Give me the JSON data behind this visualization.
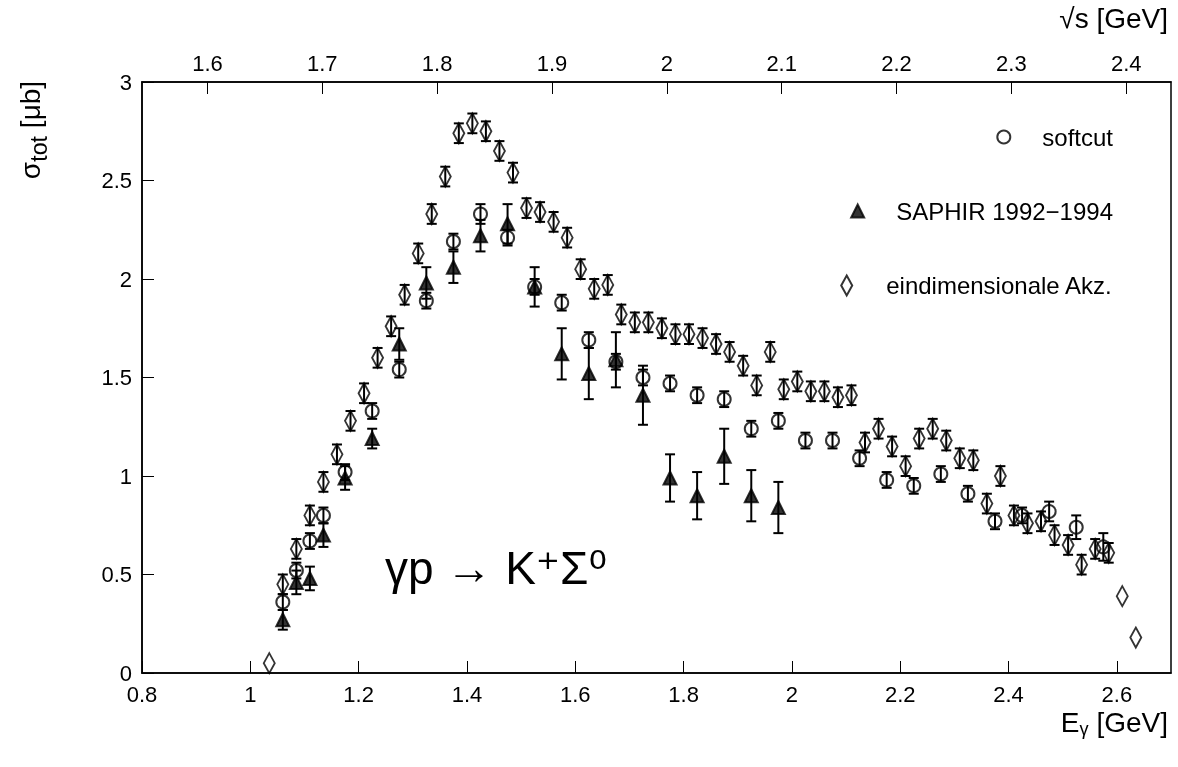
{
  "chart_data": {
    "type": "scatter",
    "xlabel": "E$_{γ}$ [GeV]",
    "ylabel": "σ$_{tot}$ [μb]",
    "x2label": "√s [GeV]",
    "annotations": [
      "γp → K⁺Σ⁰"
    ],
    "xlim": [
      0.8,
      2.7
    ],
    "xticks": [
      0.8,
      1,
      1.2,
      1.4,
      1.6,
      1.8,
      2,
      2.2,
      2.4,
      2.6
    ],
    "x2lim": [
      1.543,
      2.439
    ],
    "x2ticks": [
      1.6,
      1.7,
      1.8,
      1.9,
      2,
      2.1,
      2.2,
      2.3,
      2.4
    ],
    "ylim": [
      0,
      3
    ],
    "yticks": [
      0,
      0.5,
      1,
      1.5,
      2,
      2.5,
      3
    ],
    "grid": false,
    "legend": "top right",
    "series": [
      {
        "name": "softcut",
        "color": "#000000",
        "marker": "circle",
        "x": [
          1.06,
          1.085,
          1.11,
          1.135,
          1.175,
          1.225,
          1.275,
          1.325,
          1.375,
          1.425,
          1.475,
          1.525,
          1.575,
          1.625,
          1.675,
          1.725,
          1.775,
          1.825,
          1.875,
          1.925,
          1.975,
          2.025,
          2.075,
          2.125,
          2.175,
          2.225,
          2.275,
          2.325,
          2.375,
          2.425,
          2.475,
          2.525,
          2.575
        ],
        "values": [
          0.36,
          0.52,
          0.67,
          0.8,
          1.02,
          1.33,
          1.54,
          1.89,
          2.19,
          2.33,
          2.21,
          1.96,
          1.88,
          1.69,
          1.58,
          1.5,
          1.47,
          1.41,
          1.39,
          1.24,
          1.28,
          1.18,
          1.18,
          1.09,
          0.98,
          0.95,
          1.01,
          0.91,
          0.77,
          0.8,
          0.82,
          0.74,
          0.64
        ],
        "errors": [
          0.04,
          0.04,
          0.04,
          0.04,
          0.04,
          0.04,
          0.04,
          0.04,
          0.04,
          0.05,
          0.04,
          0.04,
          0.04,
          0.04,
          0.04,
          0.04,
          0.04,
          0.04,
          0.04,
          0.04,
          0.04,
          0.04,
          0.04,
          0.04,
          0.04,
          0.04,
          0.04,
          0.04,
          0.04,
          0.04,
          0.05,
          0.06,
          0.07
        ]
      },
      {
        "name": "SAPHIR 1992−1994",
        "color": "#000000",
        "marker": "triangle",
        "x": [
          1.06,
          1.085,
          1.11,
          1.135,
          1.175,
          1.225,
          1.275,
          1.325,
          1.375,
          1.425,
          1.475,
          1.525,
          1.575,
          1.625,
          1.675,
          1.725,
          1.775,
          1.825,
          1.875,
          1.925,
          1.975
        ],
        "values": [
          0.27,
          0.46,
          0.48,
          0.7,
          0.99,
          1.19,
          1.67,
          1.98,
          2.06,
          2.22,
          2.28,
          1.96,
          1.62,
          1.52,
          1.59,
          1.41,
          0.99,
          0.9,
          1.1,
          0.9,
          0.84
        ],
        "errors": [
          0.05,
          0.06,
          0.06,
          0.06,
          0.06,
          0.05,
          0.08,
          0.08,
          0.08,
          0.08,
          0.1,
          0.1,
          0.13,
          0.13,
          0.14,
          0.15,
          0.12,
          0.12,
          0.14,
          0.13,
          0.13
        ]
      },
      {
        "name": "eindimensionale Akz.",
        "color": "#000000",
        "marker": "diamond",
        "x": [
          1.035,
          1.06,
          1.085,
          1.11,
          1.135,
          1.16,
          1.185,
          1.21,
          1.235,
          1.26,
          1.285,
          1.31,
          1.335,
          1.36,
          1.385,
          1.41,
          1.435,
          1.46,
          1.485,
          1.51,
          1.535,
          1.56,
          1.585,
          1.61,
          1.635,
          1.66,
          1.685,
          1.71,
          1.735,
          1.76,
          1.785,
          1.81,
          1.835,
          1.86,
          1.885,
          1.91,
          1.935,
          1.96,
          1.985,
          2.01,
          2.035,
          2.06,
          2.085,
          2.11,
          2.135,
          2.16,
          2.185,
          2.21,
          2.235,
          2.26,
          2.285,
          2.31,
          2.335,
          2.36,
          2.385,
          2.41,
          2.435,
          2.46,
          2.485,
          2.51,
          2.535,
          2.56,
          2.585,
          2.61,
          2.635
        ],
        "values": [
          0.05,
          0.45,
          0.63,
          0.8,
          0.97,
          1.11,
          1.28,
          1.42,
          1.6,
          1.76,
          1.92,
          2.13,
          2.33,
          2.52,
          2.74,
          2.79,
          2.75,
          2.65,
          2.54,
          2.36,
          2.34,
          2.29,
          2.21,
          2.05,
          1.95,
          1.97,
          1.82,
          1.78,
          1.78,
          1.75,
          1.72,
          1.72,
          1.7,
          1.67,
          1.63,
          1.56,
          1.46,
          1.63,
          1.44,
          1.48,
          1.43,
          1.43,
          1.4,
          1.41,
          1.17,
          1.24,
          1.15,
          1.05,
          1.19,
          1.24,
          1.18,
          1.09,
          1.08,
          0.86,
          1,
          0.8,
          0.76,
          0.77,
          0.7,
          0.65,
          0.55,
          0.63,
          0.61,
          0.39,
          0.18
        ],
        "errors": [
          null,
          0.05,
          0.05,
          0.05,
          0.05,
          0.05,
          0.05,
          0.05,
          0.05,
          0.05,
          0.05,
          0.05,
          0.05,
          0.05,
          0.05,
          0.05,
          0.05,
          0.05,
          0.05,
          0.05,
          0.05,
          0.05,
          0.05,
          0.05,
          0.05,
          0.05,
          0.05,
          0.05,
          0.05,
          0.05,
          0.05,
          0.05,
          0.05,
          0.05,
          0.05,
          0.05,
          0.05,
          0.05,
          0.05,
          0.05,
          0.05,
          0.05,
          0.05,
          0.05,
          0.05,
          0.05,
          0.05,
          0.05,
          0.05,
          0.05,
          0.05,
          0.05,
          0.05,
          0.05,
          0.05,
          0.05,
          0.05,
          0.05,
          0.05,
          0.05,
          0.05,
          0.05,
          0.05,
          null,
          null
        ]
      }
    ]
  }
}
